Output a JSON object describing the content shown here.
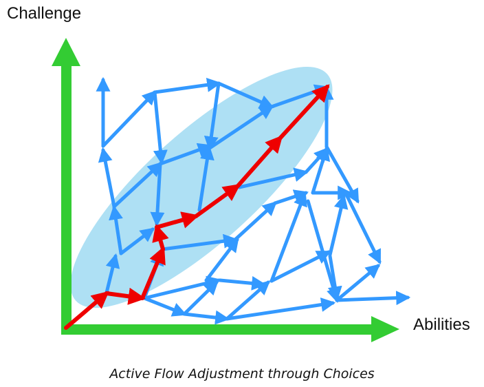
{
  "axes": {
    "y_label": "Challenge",
    "x_label": "Abilities"
  },
  "caption": "Active Flow Adjustment through Choices",
  "colors": {
    "axis": "#33cc33",
    "flow_zone": "#aee0f4",
    "choice_path": "#3399ff",
    "chosen_path": "#ee0000"
  }
}
